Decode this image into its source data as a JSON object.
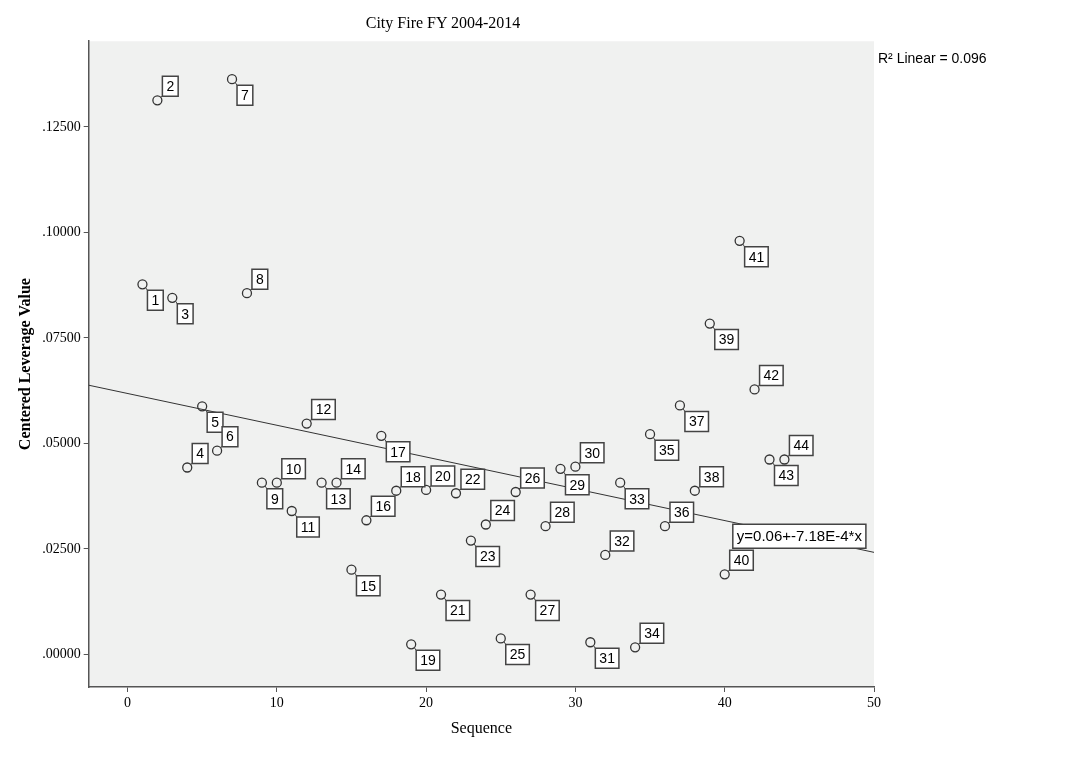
{
  "chart_data": {
    "type": "scatter",
    "title": "City Fire FY 2004-2014",
    "xlabel": "Sequence",
    "ylabel": "Centered Leverage Value",
    "x": [
      1,
      2,
      3,
      4,
      5,
      6,
      7,
      8,
      9,
      10,
      11,
      12,
      13,
      14,
      15,
      16,
      17,
      18,
      19,
      20,
      21,
      22,
      23,
      24,
      25,
      26,
      27,
      28,
      29,
      30,
      31,
      32,
      33,
      34,
      35,
      36,
      37,
      38,
      39,
      40,
      41,
      42,
      43,
      44
    ],
    "series": [
      {
        "color": "#333333",
        "marker": "circle",
        "values": [
          0.0877,
          0.1313,
          0.0845,
          0.0443,
          0.0588,
          0.0483,
          0.1363,
          0.0856,
          0.0407,
          0.0407,
          0.034,
          0.0547,
          0.0407,
          0.0407,
          0.0201,
          0.0318,
          0.0518,
          0.0388,
          0.0024,
          0.039,
          0.0142,
          0.0382,
          0.027,
          0.0308,
          0.0038,
          0.0385,
          0.0142,
          0.0304,
          0.044,
          0.0445,
          0.0029,
          0.0236,
          0.0407,
          0.0017,
          0.0522,
          0.0304,
          0.059,
          0.0388,
          0.0784,
          0.019,
          0.098,
          0.0628,
          0.0462,
          0.0462
        ]
      },
      {
        "type": "line",
        "color": "#333333",
        "x": [
          -2.6,
          50
        ],
        "values": [
          0.0638,
          0.0242
        ]
      }
    ],
    "xlim": [
      -2.6,
      50
    ],
    "xticks": [
      0,
      10,
      20,
      30,
      40,
      50
    ],
    "ylim": [
      -0.0077,
      0.1453
    ],
    "yticks": [
      {
        "value": 0,
        "label": ".00000"
      },
      {
        "value": 0.025,
        "label": ".02500"
      },
      {
        "value": 0.05,
        "label": ".05000"
      },
      {
        "value": 0.075,
        "label": ".07500"
      },
      {
        "value": 0.1,
        "label": ".10000"
      },
      {
        "value": 0.125,
        "label": ".12500"
      }
    ],
    "grid": false,
    "legend": false,
    "annotations": [
      {
        "text": "y=0.06+-7.18E-4*x",
        "x": 45,
        "y": 0.028
      },
      "R² Linear = 0.096",
      {
        "text": "1",
        "x": 1,
        "y": 0.0877
      },
      {
        "text": "2",
        "x": 2,
        "y": 0.1313
      },
      {
        "text": "3",
        "x": 3,
        "y": 0.0845
      },
      {
        "text": "4",
        "x": 4,
        "y": 0.0443
      },
      {
        "text": "5",
        "x": 5,
        "y": 0.0588
      },
      {
        "text": "6",
        "x": 6,
        "y": 0.0483
      },
      {
        "text": "7",
        "x": 7,
        "y": 0.1363
      },
      {
        "text": "8",
        "x": 8,
        "y": 0.0856
      },
      {
        "text": "9",
        "x": 9,
        "y": 0.0407
      },
      {
        "text": "10",
        "x": 10,
        "y": 0.0407
      },
      {
        "text": "11",
        "x": 11,
        "y": 0.034
      },
      {
        "text": "12",
        "x": 12,
        "y": 0.0547
      },
      {
        "text": "13",
        "x": 13,
        "y": 0.0407
      },
      {
        "text": "14",
        "x": 14,
        "y": 0.0407
      },
      {
        "text": "15",
        "x": 15,
        "y": 0.0201
      },
      {
        "text": "16",
        "x": 16,
        "y": 0.0318
      },
      {
        "text": "17",
        "x": 17,
        "y": 0.0518
      },
      {
        "text": "18",
        "x": 18,
        "y": 0.0388
      },
      {
        "text": "19",
        "x": 19,
        "y": 0.0024
      },
      {
        "text": "20",
        "x": 20,
        "y": 0.039
      },
      {
        "text": "21",
        "x": 21,
        "y": 0.0142
      },
      {
        "text": "22",
        "x": 22,
        "y": 0.0382
      },
      {
        "text": "23",
        "x": 23,
        "y": 0.027
      },
      {
        "text": "24",
        "x": 24,
        "y": 0.0308
      },
      {
        "text": "25",
        "x": 25,
        "y": 0.0038
      },
      {
        "text": "26",
        "x": 26,
        "y": 0.0385
      },
      {
        "text": "27",
        "x": 27,
        "y": 0.0142
      },
      {
        "text": "28",
        "x": 28,
        "y": 0.0304
      },
      {
        "text": "29",
        "x": 29,
        "y": 0.044
      },
      {
        "text": "30",
        "x": 30,
        "y": 0.0445
      },
      {
        "text": "31",
        "x": 31,
        "y": 0.0029
      },
      {
        "text": "32",
        "x": 32,
        "y": 0.0236
      },
      {
        "text": "33",
        "x": 33,
        "y": 0.0407
      },
      {
        "text": "34",
        "x": 34,
        "y": 0.0017
      },
      {
        "text": "35",
        "x": 35,
        "y": 0.0522
      },
      {
        "text": "36",
        "x": 36,
        "y": 0.0304
      },
      {
        "text": "37",
        "x": 37,
        "y": 0.059
      },
      {
        "text": "38",
        "x": 38,
        "y": 0.0388
      },
      {
        "text": "39",
        "x": 39,
        "y": 0.0784
      },
      {
        "text": "40",
        "x": 40,
        "y": 0.019
      },
      {
        "text": "41",
        "x": 41,
        "y": 0.098
      },
      {
        "text": "42",
        "x": 42,
        "y": 0.0628
      },
      {
        "text": "43",
        "x": 43,
        "y": 0.0462
      },
      {
        "text": "44",
        "x": 44,
        "y": 0.0462
      }
    ]
  }
}
